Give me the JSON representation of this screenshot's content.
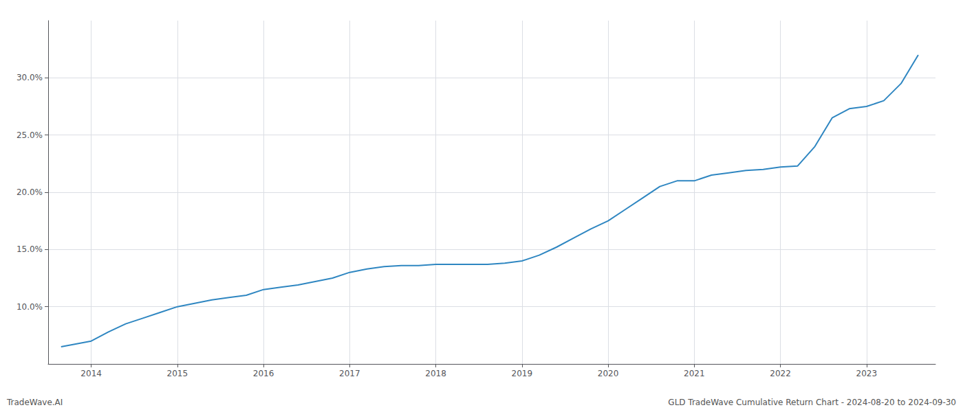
{
  "chart_data": {
    "type": "line",
    "x": [
      2013.65,
      2014.0,
      2014.2,
      2014.4,
      2014.6,
      2014.8,
      2015.0,
      2015.2,
      2015.4,
      2015.6,
      2015.8,
      2016.0,
      2016.2,
      2016.4,
      2016.6,
      2016.8,
      2017.0,
      2017.2,
      2017.4,
      2017.6,
      2017.8,
      2018.0,
      2018.2,
      2018.4,
      2018.6,
      2018.8,
      2019.0,
      2019.2,
      2019.4,
      2019.6,
      2019.8,
      2020.0,
      2020.2,
      2020.4,
      2020.6,
      2020.8,
      2021.0,
      2021.2,
      2021.4,
      2021.6,
      2021.8,
      2022.0,
      2022.2,
      2022.4,
      2022.6,
      2022.8,
      2023.0,
      2023.2,
      2023.4,
      2023.6
    ],
    "values": [
      6.5,
      7.0,
      7.8,
      8.5,
      9.0,
      9.5,
      10.0,
      10.3,
      10.6,
      10.8,
      11.0,
      11.5,
      11.7,
      11.9,
      12.2,
      12.5,
      13.0,
      13.3,
      13.5,
      13.6,
      13.6,
      13.7,
      13.7,
      13.7,
      13.7,
      13.8,
      14.0,
      14.5,
      15.2,
      16.0,
      16.8,
      17.5,
      18.5,
      19.5,
      20.5,
      21.0,
      21.0,
      21.5,
      21.7,
      21.9,
      22.0,
      22.2,
      22.3,
      24.0,
      26.5,
      27.3,
      27.5,
      28.0,
      29.5,
      32.0
    ],
    "color": "#2e86c1",
    "xlim": [
      2013.5,
      2023.8
    ],
    "xticks": [
      2014,
      2015,
      2016,
      2017,
      2018,
      2019,
      2020,
      2021,
      2022,
      2023
    ],
    "ylim": [
      5.0,
      35.0
    ],
    "yticks": [
      {
        "value": 10.0,
        "label": "10.0%"
      },
      {
        "value": 15.0,
        "label": "15.0%"
      },
      {
        "value": 20.0,
        "label": "20.0%"
      },
      {
        "value": 25.0,
        "label": "25.0%"
      },
      {
        "value": 30.0,
        "label": "30.0%"
      }
    ],
    "grid": true,
    "annotations": [
      "TradeWave.AI",
      "GLD TradeWave Cumulative Return Chart - 2024-08-20 to 2024-09-30"
    ]
  }
}
